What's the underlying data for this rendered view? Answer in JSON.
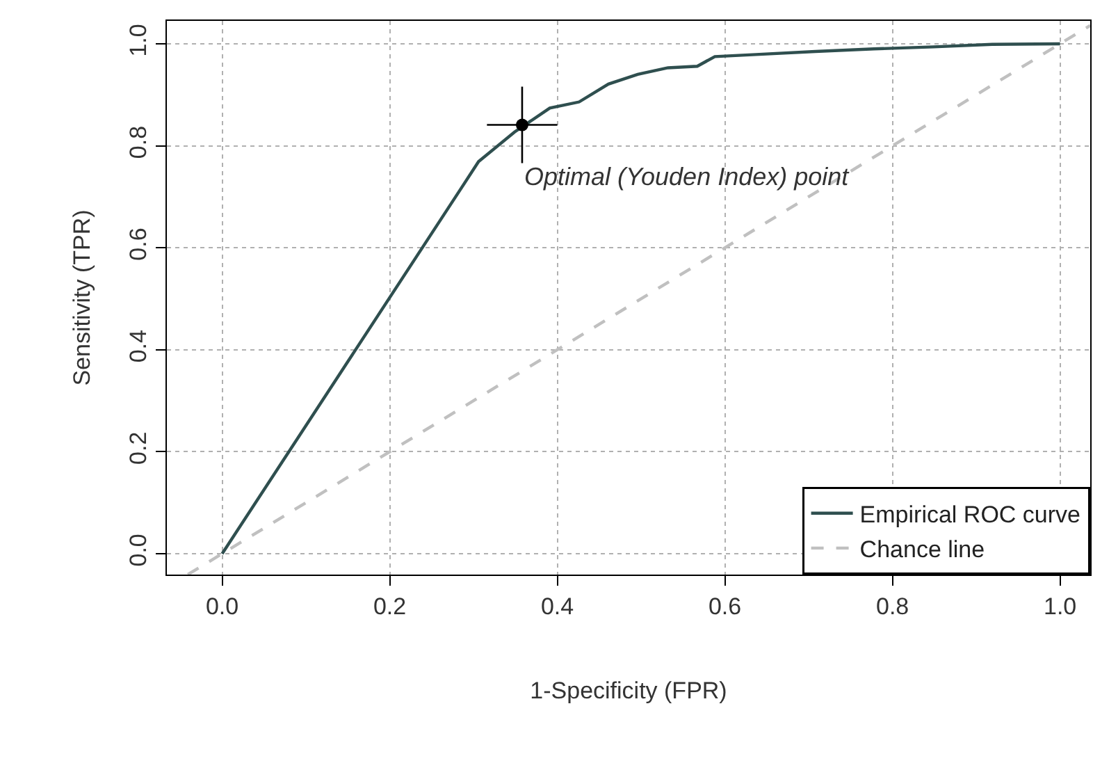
{
  "chart_data": {
    "type": "line",
    "xlabel": "1-Specificity (FPR)",
    "ylabel": "Sensitivity (TPR)",
    "xlim": [
      -0.066,
      1.036
    ],
    "ylim": [
      -0.041,
      1.045
    ],
    "xticks": [
      {
        "value": 0,
        "label": "0.0"
      },
      {
        "value": 0.2,
        "label": "0.2"
      },
      {
        "value": 0.4,
        "label": "0.4"
      },
      {
        "value": 0.6,
        "label": "0.6"
      },
      {
        "value": 0.8,
        "label": "0.8"
      },
      {
        "value": 1,
        "label": "1.0"
      }
    ],
    "yticks": [
      {
        "value": 0,
        "label": "0.0"
      },
      {
        "value": 0.2,
        "label": "0.2"
      },
      {
        "value": 0.4,
        "label": "0.4"
      },
      {
        "value": 0.6,
        "label": "0.6"
      },
      {
        "value": 0.8,
        "label": "0.8"
      },
      {
        "value": 1,
        "label": "1.0"
      }
    ],
    "grid": true,
    "legend": "bottom right",
    "marker": "none",
    "series": [
      {
        "name": "Empirical ROC curve",
        "color": "#2f4f4f",
        "line_style": "solid",
        "x": [
          0,
          0.285,
          0.306,
          0.349,
          0.391,
          0.426,
          0.461,
          0.496,
          0.532,
          0.567,
          0.588,
          0.637,
          0.708,
          0.778,
          0.849,
          0.919,
          1
        ],
        "values": [
          0,
          0.716,
          0.769,
          0.827,
          0.874,
          0.886,
          0.921,
          0.94,
          0.953,
          0.956,
          0.975,
          0.979,
          0.985,
          0.99,
          0.994,
          0.999,
          1
        ]
      },
      {
        "name": "Chance line",
        "color": "#c0c0c0",
        "line_style": "dashed",
        "x": [
          -0.041,
          1.036
        ],
        "values": [
          -0.041,
          1.036
        ]
      },
      {
        "type": "scatter",
        "color": "#000000",
        "marker": "circle",
        "x": [
          0.358
        ],
        "values": [
          0.841
        ],
        "errors": [
          0.075
        ],
        "xerrors": [
          0.042
        ]
      }
    ],
    "annotations": [
      "Optimal (Youden Index) point"
    ]
  }
}
